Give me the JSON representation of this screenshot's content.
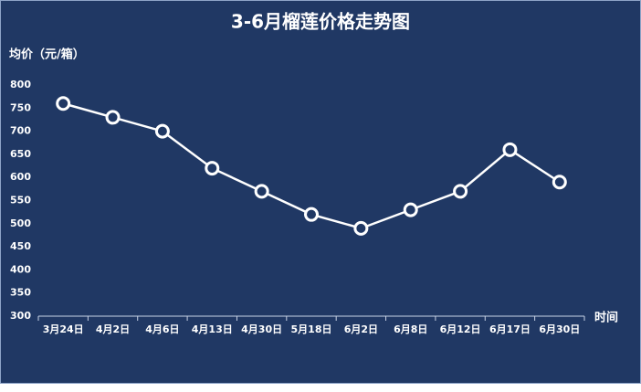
{
  "chart_data": {
    "type": "line",
    "title": "3-6月榴莲价格走势图",
    "y_label": "均价（元/箱）",
    "x_label": "时间",
    "categories": [
      "3月24日",
      "4月2日",
      "4月6日",
      "4月13日",
      "4月30日",
      "5月18日",
      "6月2日",
      "6月8日",
      "6月12日",
      "6月17日",
      "6月30日"
    ],
    "values": [
      760,
      730,
      700,
      620,
      570,
      520,
      490,
      530,
      570,
      660,
      590
    ],
    "color": "#ffffff",
    "background": "#203864",
    "ylim": [
      300,
      800
    ],
    "yticks": [
      300,
      350,
      400,
      450,
      500,
      550,
      600,
      650,
      700,
      750,
      800
    ],
    "grid": false
  }
}
